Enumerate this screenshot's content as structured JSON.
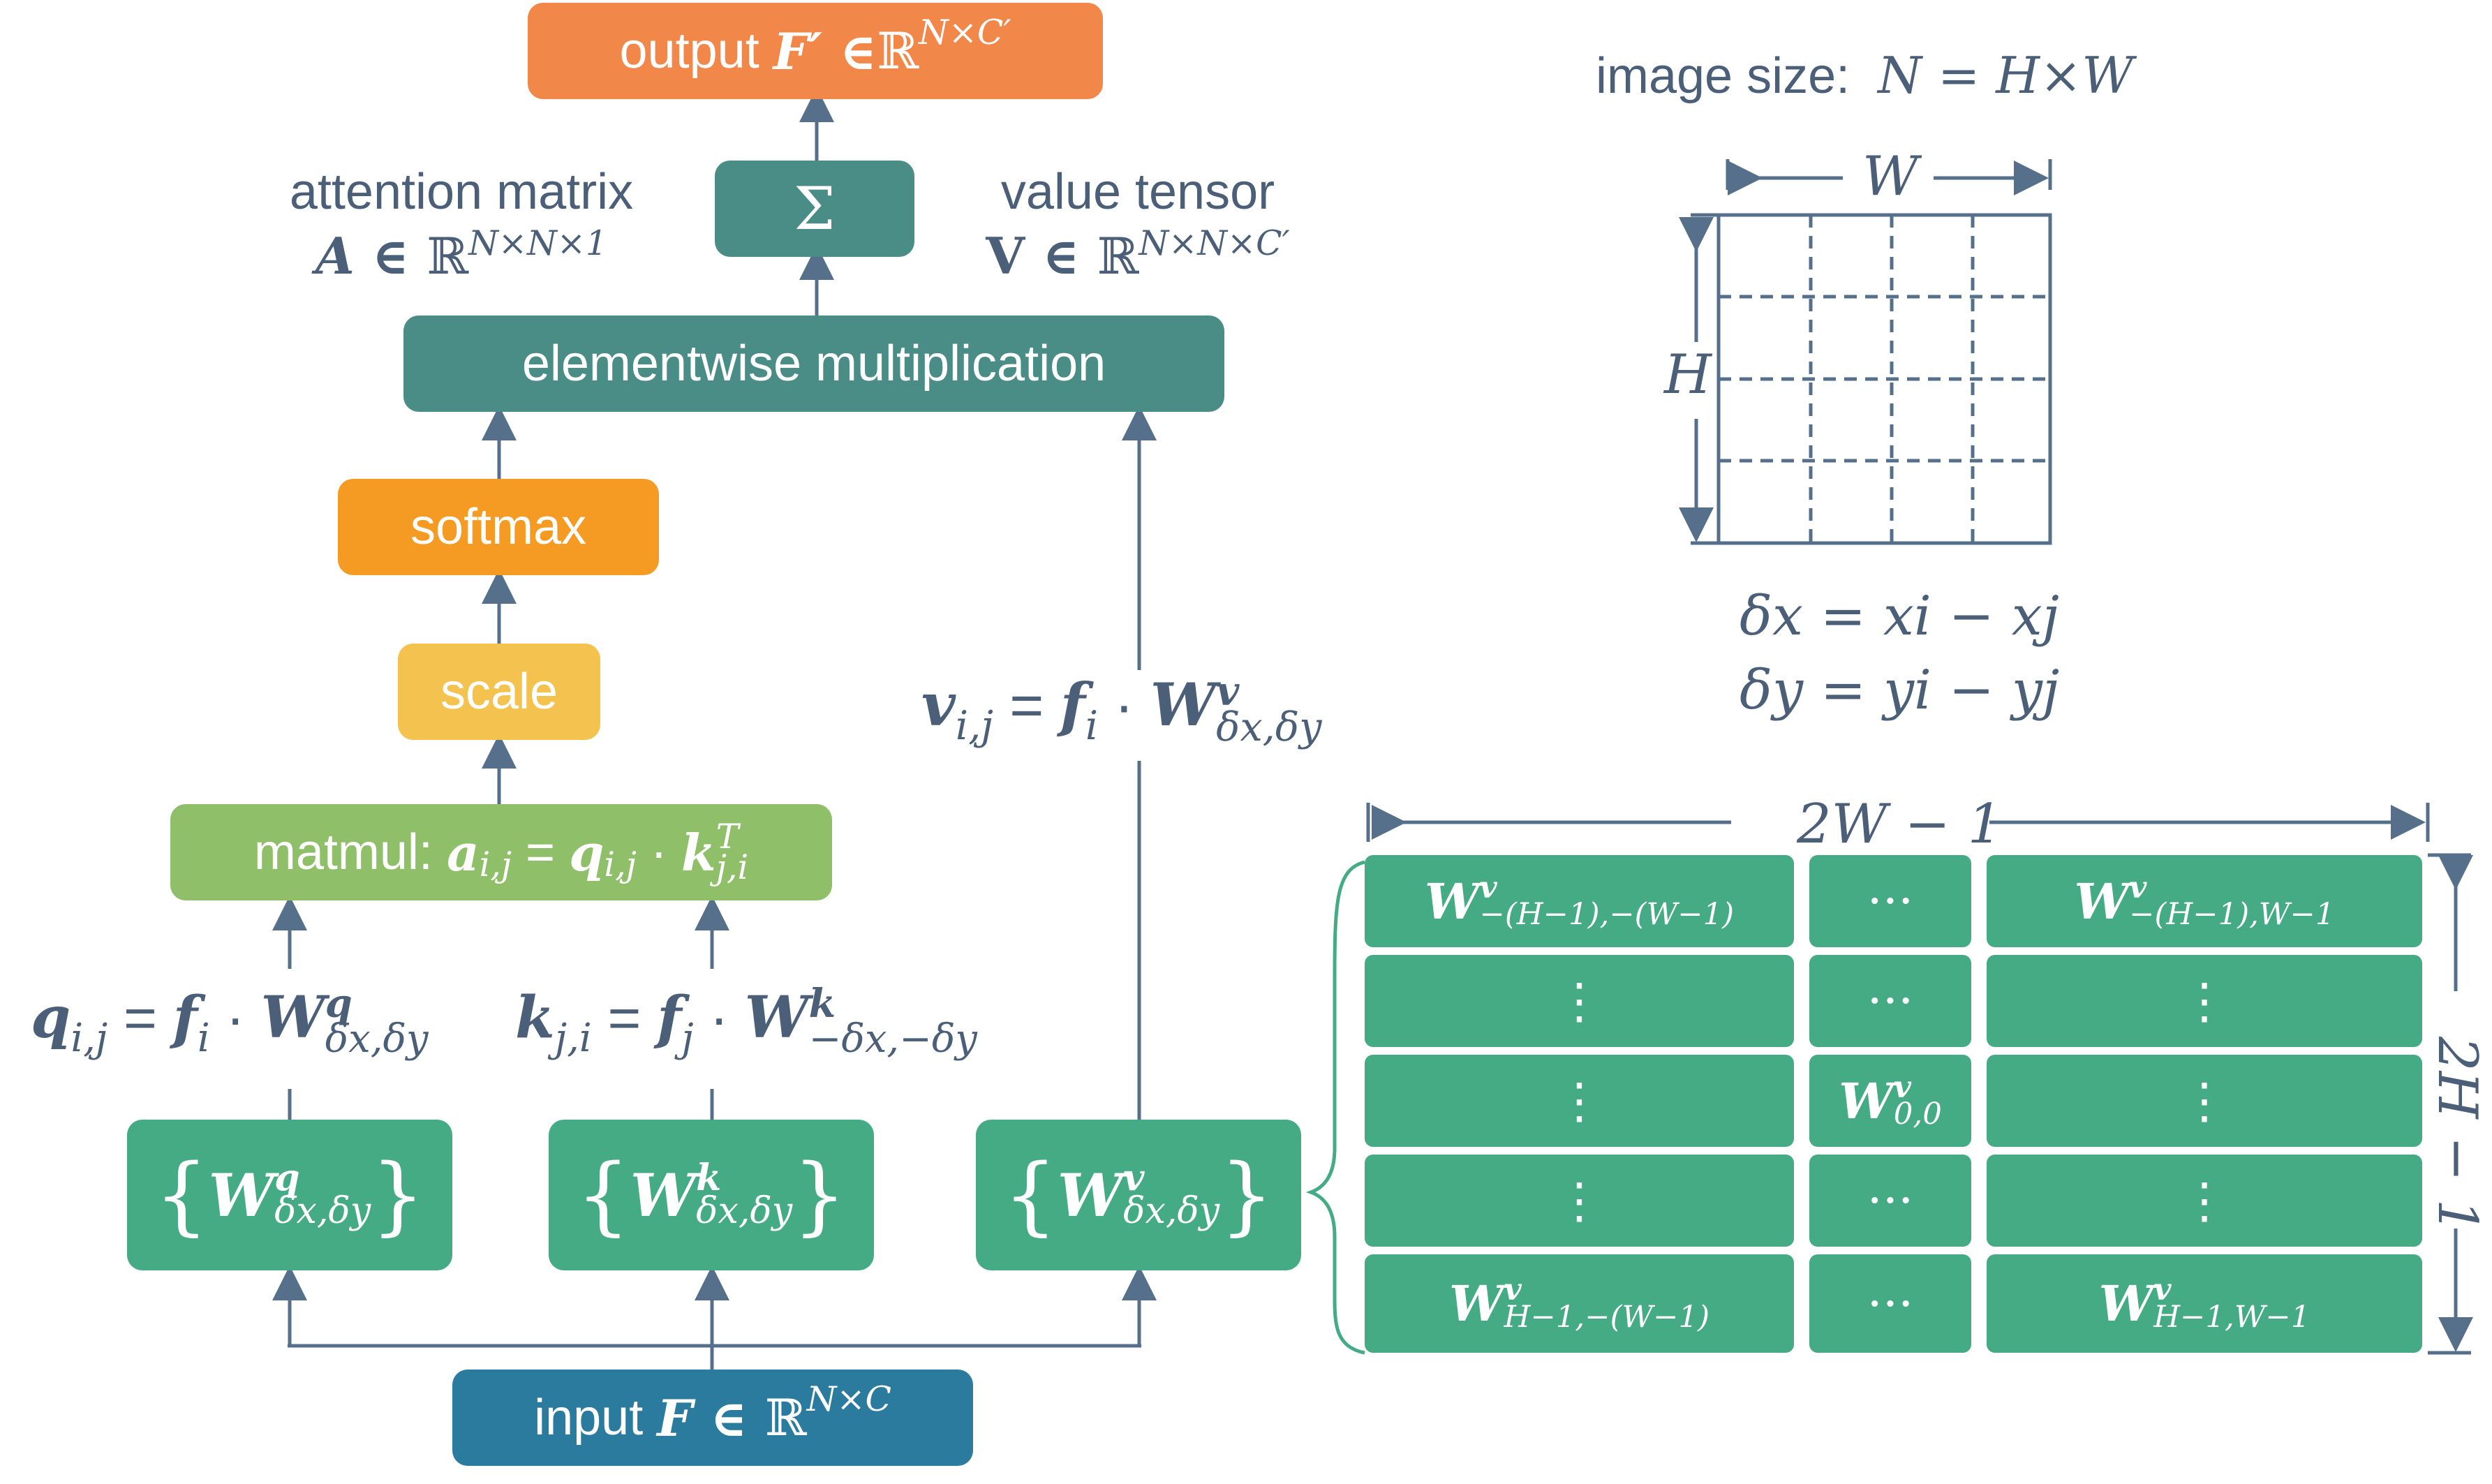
{
  "flow": {
    "output": {
      "word": "output",
      "sym": "F′ ∈ ",
      "space": "ℝ",
      "dims": "N×C′"
    },
    "sum": "Σ",
    "attention": {
      "title": "attention matrix",
      "sym": "A ∈ ",
      "space": "ℝ",
      "dims": "N×N×1"
    },
    "value": {
      "title": "value tensor",
      "sym": "V ∈ ",
      "space": "ℝ",
      "dims": "N×N×C′"
    },
    "elementwise": "elementwise multiplication",
    "softmax": "softmax",
    "scale": "scale",
    "matmul": {
      "word": "matmul: ",
      "lhs": "a",
      "lhs_sub": "i,j",
      "mid": " = ",
      "q": "q",
      "q_sub": "i,j",
      "dot": " · ",
      "k": "k",
      "k_sub": "j,i",
      "k_sup": "T"
    },
    "v_eq": {
      "v": "v",
      "v_sub": "i,j",
      "eq": " = ",
      "f": "f",
      "f_sub": "i",
      "dot": " · ",
      "W": "W",
      "W_sup": "v",
      "W_sub": "δx,δy"
    },
    "q_eq": {
      "q": "q",
      "q_sub": "i,j",
      "eq": " = ",
      "f": "f",
      "f_sub": "i",
      "dot": " · ",
      "W": "W",
      "W_sup": "q",
      "W_sub": "δx,δy"
    },
    "k_eq": {
      "k": "k",
      "k_sub": "j,i",
      "eq": " = ",
      "f": "f",
      "f_sub": "j",
      "dot": " · ",
      "W": "W",
      "W_sup": "k",
      "W_sub": "−δx,−δy"
    },
    "wq": {
      "open": "{",
      "W": "W",
      "sup": "q",
      "sub": "δx,δy",
      "close": "}"
    },
    "wk": {
      "open": "{",
      "W": "W",
      "sup": "k",
      "sub": "δx,δy",
      "close": "}"
    },
    "wv": {
      "open": "{",
      "W": "W",
      "sup": "v",
      "sub": "δx,δy",
      "close": "}"
    },
    "input": {
      "word": "input ",
      "sym": "F ∈ ",
      "space": "ℝ",
      "dims": "N×C"
    }
  },
  "grid": {
    "size_label": "image size:",
    "size_eq": "N = H×W",
    "w": "W",
    "h": "H",
    "dx_eq": "δx = xi − xj",
    "dy_eq": "δy = yi − yj"
  },
  "table": {
    "width_label": "2W − 1",
    "height_label": "2H − 1",
    "W": "W",
    "sup": "v",
    "cells": {
      "r0c0": "−(H−1),−(W−1)",
      "r0c2": "−(H−1),W−1",
      "r2c1": "0,0",
      "r4c0": "H−1,−(W−1)",
      "r4c2": "H−1,W−1"
    },
    "hdots": "···",
    "vdots": "⋮"
  },
  "colors": {
    "teal": "#4a8c86",
    "green": "#45ab84",
    "orange": "#f2874a",
    "amber": "#f59a23",
    "yellow": "#f4c24f",
    "lime": "#8fbf68",
    "blue": "#2a7b9d",
    "ink": "#4b5f78",
    "line": "#56708c"
  }
}
